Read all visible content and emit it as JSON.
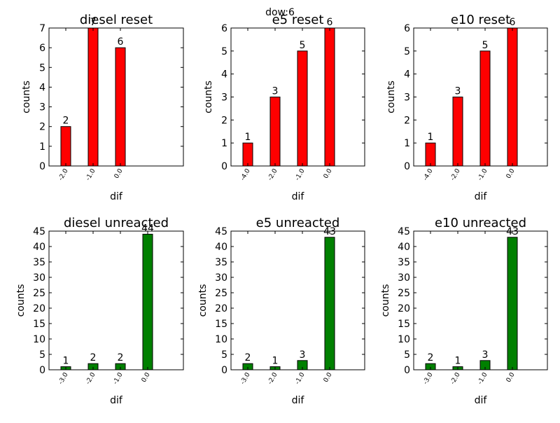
{
  "suptitle": "dow:6",
  "chart_data": [
    {
      "type": "bar",
      "title": "diesel reset",
      "xlabel": "dif",
      "ylabel": "counts",
      "categories": [
        "-2.0",
        "-1.0",
        "0.0"
      ],
      "values": [
        2,
        7,
        6
      ],
      "data_labels": [
        "2",
        "7",
        "6"
      ],
      "ylim": [
        0,
        7
      ],
      "yticks": [
        "0",
        "1",
        "2",
        "3",
        "4",
        "5",
        "6",
        "7"
      ],
      "color": "#ff0000",
      "grid": false
    },
    {
      "type": "bar",
      "title": "e5 reset",
      "xlabel": "dif",
      "ylabel": "counts",
      "categories": [
        "-4.0",
        "-2.0",
        "-1.0",
        "0.0"
      ],
      "values": [
        1,
        3,
        5,
        6
      ],
      "data_labels": [
        "1",
        "3",
        "5",
        "6"
      ],
      "ylim": [
        0,
        6
      ],
      "yticks": [
        "0",
        "1",
        "2",
        "3",
        "4",
        "5",
        "6"
      ],
      "color": "#ff0000",
      "grid": false
    },
    {
      "type": "bar",
      "title": "e10 reset",
      "xlabel": "dif",
      "ylabel": "counts",
      "categories": [
        "-4.0",
        "-2.0",
        "-1.0",
        "0.0"
      ],
      "values": [
        1,
        3,
        5,
        6
      ],
      "data_labels": [
        "1",
        "3",
        "5",
        "6"
      ],
      "ylim": [
        0,
        6
      ],
      "yticks": [
        "0",
        "1",
        "2",
        "3",
        "4",
        "5",
        "6"
      ],
      "color": "#ff0000",
      "grid": false
    },
    {
      "type": "bar",
      "title": "diesel unreacted",
      "xlabel": "dif",
      "ylabel": "counts",
      "categories": [
        "-3.0",
        "-2.0",
        "-1.0",
        "0.0"
      ],
      "values": [
        1,
        2,
        2,
        44
      ],
      "data_labels": [
        "1",
        "2",
        "2",
        "44"
      ],
      "ylim": [
        0,
        45
      ],
      "yticks": [
        "0",
        "5",
        "10",
        "15",
        "20",
        "25",
        "30",
        "35",
        "40",
        "45"
      ],
      "color": "#008000",
      "grid": false
    },
    {
      "type": "bar",
      "title": "e5 unreacted",
      "xlabel": "dif",
      "ylabel": "counts",
      "categories": [
        "-3.0",
        "-2.0",
        "-1.0",
        "0.0"
      ],
      "values": [
        2,
        1,
        3,
        43
      ],
      "data_labels": [
        "2",
        "1",
        "3",
        "43"
      ],
      "ylim": [
        0,
        45
      ],
      "yticks": [
        "0",
        "5",
        "10",
        "15",
        "20",
        "25",
        "30",
        "35",
        "40",
        "45"
      ],
      "color": "#008000",
      "grid": false
    },
    {
      "type": "bar",
      "title": "e10 unreacted",
      "xlabel": "dif",
      "ylabel": "counts",
      "categories": [
        "-3.0",
        "-2.0",
        "-1.0",
        "0.0"
      ],
      "values": [
        2,
        1,
        3,
        43
      ],
      "data_labels": [
        "2",
        "1",
        "3",
        "43"
      ],
      "ylim": [
        0,
        45
      ],
      "yticks": [
        "0",
        "5",
        "10",
        "15",
        "20",
        "25",
        "30",
        "35",
        "40",
        "45"
      ],
      "color": "#008000",
      "grid": false
    }
  ]
}
